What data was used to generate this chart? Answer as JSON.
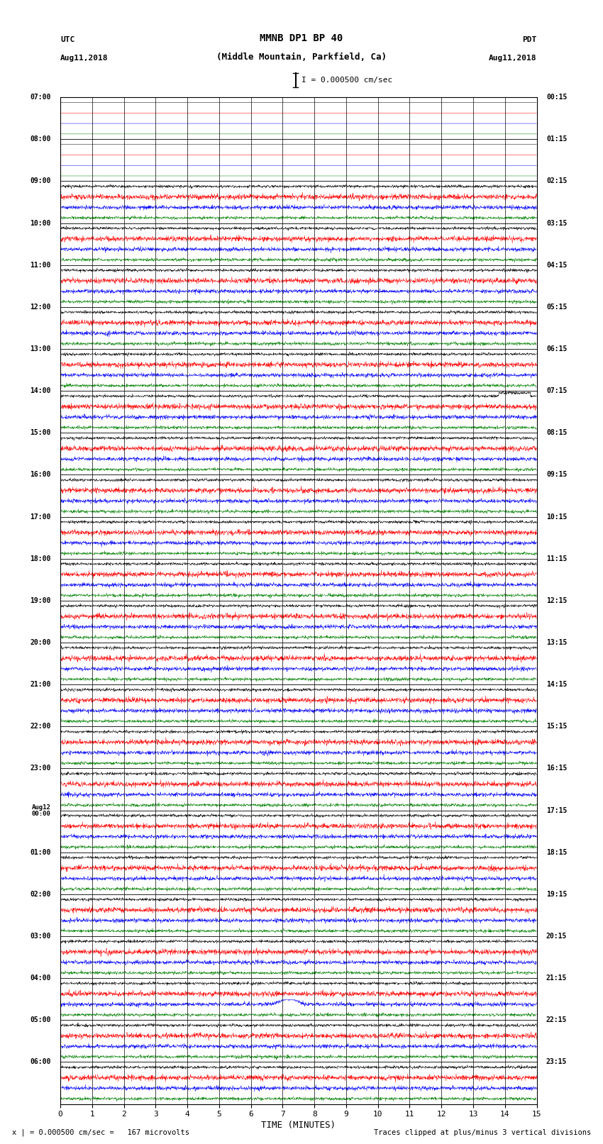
{
  "title_line1": "MMNB DP1 BP 40",
  "title_line2": "(Middle Mountain, Parkfield, Ca)",
  "scale_label": "I = 0.000500 cm/sec",
  "left_label_top": "UTC",
  "left_label_date": "Aug11,2018",
  "right_label_top": "PDT",
  "right_label_date": "Aug11,2018",
  "xlabel": "TIME (MINUTES)",
  "footer_left": "x | = 0.000500 cm/sec =   167 microvolts",
  "footer_right": "Traces clipped at plus/minus 3 vertical divisions",
  "background_color": "#ffffff",
  "trace_colors": [
    "#000000",
    "#ff0000",
    "#0000ff",
    "#008000"
  ],
  "xlim": [
    0,
    15
  ],
  "figsize": [
    8.5,
    16.13
  ],
  "dpi": 100,
  "utc_row_labels": [
    "07:00",
    "08:00",
    "09:00",
    "10:00",
    "11:00",
    "12:00",
    "13:00",
    "14:00",
    "15:00",
    "16:00",
    "17:00",
    "18:00",
    "19:00",
    "20:00",
    "21:00",
    "22:00",
    "23:00",
    "Aug12\n00:00",
    "01:00",
    "02:00",
    "03:00",
    "04:00",
    "05:00",
    "06:00"
  ],
  "pdt_row_labels": [
    "00:15",
    "01:15",
    "02:15",
    "03:15",
    "04:15",
    "05:15",
    "06:15",
    "07:15",
    "08:15",
    "09:15",
    "10:15",
    "11:15",
    "12:15",
    "13:15",
    "14:15",
    "15:15",
    "16:15",
    "17:15",
    "18:15",
    "19:15",
    "20:15",
    "21:15",
    "22:15",
    "23:15"
  ],
  "num_hours": 24,
  "quiet_hours": [
    0,
    1
  ],
  "event_black_hour": 1,
  "event_black_time": 13.8,
  "event_seismic_hour": 7,
  "event_seismic_time": 14.3,
  "event_blue_hour": 21,
  "event_blue_time": 7.2,
  "noise_base": 0.06,
  "noise_red_mult": 1.8,
  "noise_blue_mult": 1.4,
  "noise_green_mult": 1.1,
  "noise_black_mult": 1.0
}
